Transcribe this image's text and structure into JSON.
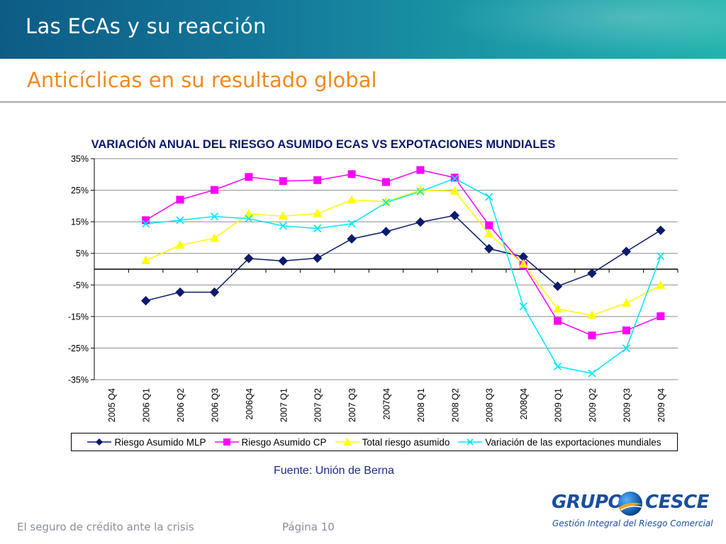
{
  "slide": {
    "title": "Las ECAs y su reacción",
    "subtitle": "Anticíclicas en su resultado global",
    "source": "Fuente: Unión de Berna",
    "footer_left": "El seguro de crédito ante la crisis",
    "page_label": "Página 10"
  },
  "logo": {
    "word1": "GRUPO",
    "word2": "CESCE",
    "tagline": "Gestión Integral del Riesgo Comercial",
    "colors": {
      "navy": "#1b4e9b",
      "globe": "#1d6fc2",
      "swoosh": "#f2a31b"
    }
  },
  "chart_data": {
    "type": "line",
    "title": "VARIACIÓN ANUAL DEL RIESGO ASUMIDO ECAS VS EXPOTACIONES MUNDIALES",
    "xlabel": "",
    "ylabel": "",
    "categories": [
      "2005 Q4",
      "2006 Q1",
      "2006 Q2",
      "2006 Q3",
      "2006Q4",
      "2007 Q1",
      "2007 Q2",
      "2007 Q3",
      "2007Q4",
      "2008 Q1",
      "2008 Q2",
      "2008 Q3",
      "2008Q4",
      "2009 Q1",
      "2009 Q2",
      "2009 Q3",
      "2009 Q4"
    ],
    "ylim": [
      -35,
      35
    ],
    "yticks": [
      35,
      25,
      15,
      5,
      -5,
      -15,
      -25,
      -35
    ],
    "ytick_labels": [
      "35%",
      "25%",
      "15%",
      "5%",
      "-5%",
      "-15%",
      "-25%",
      "-35%"
    ],
    "grid": true,
    "legend_position": "bottom",
    "series": [
      {
        "name": "Riesgo Asumido MLP",
        "color": "#0b1a6b",
        "marker": "diamond",
        "values": [
          null,
          -10.0,
          -7.3,
          -7.3,
          3.4,
          2.6,
          3.5,
          9.6,
          11.9,
          14.9,
          17.0,
          6.5,
          3.9,
          -5.4,
          -1.3,
          5.6,
          12.3
        ]
      },
      {
        "name": "Riesgo Asumido CP",
        "color": "#ff00ff",
        "marker": "square",
        "values": [
          null,
          15.5,
          22.0,
          25.1,
          29.2,
          27.9,
          28.2,
          30.1,
          27.6,
          31.4,
          29.0,
          13.9,
          1.3,
          -16.4,
          -21.0,
          -19.4,
          -14.9
        ]
      },
      {
        "name": "Total riesgo asumido",
        "color": "#ffff00",
        "marker": "triangle",
        "values": [
          null,
          2.7,
          7.6,
          9.8,
          17.5,
          16.8,
          17.6,
          21.9,
          21.4,
          25.0,
          24.7,
          11.2,
          1.6,
          -12.6,
          -14.6,
          -10.8,
          -5.1
        ]
      },
      {
        "name": "Variación de las exportaciones mundiales",
        "color": "#00e5ff",
        "marker": "x",
        "values": [
          null,
          14.4,
          15.5,
          16.7,
          16.0,
          13.7,
          12.9,
          14.4,
          21.1,
          24.6,
          28.7,
          22.9,
          -11.8,
          -30.8,
          -33.0,
          -25.1,
          4.1
        ]
      }
    ]
  }
}
